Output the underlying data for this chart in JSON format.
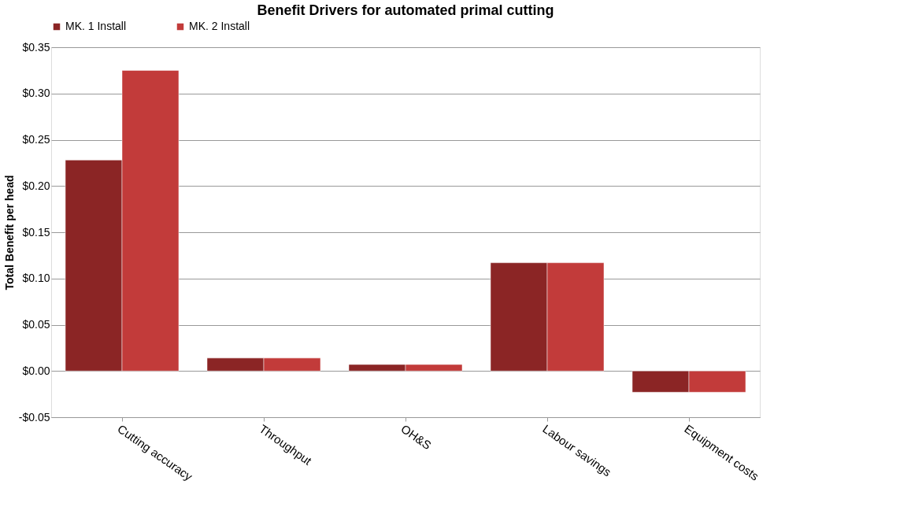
{
  "chart_data": {
    "type": "bar",
    "title": "Benefit Drivers for automated primal cutting",
    "ylabel": "Total Benefit per head",
    "categories": [
      "Cutting accuracy",
      "Throughput",
      "OH&S",
      "Labour savings",
      "Equipment costs"
    ],
    "series": [
      {
        "name": "MK. 1 Install",
        "color": "#8b2525",
        "values": [
          0.228,
          0.014,
          0.007,
          0.117,
          -0.023
        ]
      },
      {
        "name": "MK. 2 Install",
        "color": "#c23b3a",
        "values": [
          0.325,
          0.014,
          0.007,
          0.117,
          -0.023
        ]
      }
    ],
    "ylim": [
      -0.05,
      0.35
    ],
    "yticks": [
      {
        "value": -0.05,
        "label": "-$0.05"
      },
      {
        "value": 0.0,
        "label": "$0.00"
      },
      {
        "value": 0.05,
        "label": "$0.05"
      },
      {
        "value": 0.1,
        "label": "$0.10"
      },
      {
        "value": 0.15,
        "label": "$0.15"
      },
      {
        "value": 0.2,
        "label": "$0.20"
      },
      {
        "value": 0.25,
        "label": "$0.25"
      },
      {
        "value": 0.3,
        "label": "$0.30"
      },
      {
        "value": 0.35,
        "label": "$0.35"
      }
    ],
    "grid": "y",
    "legend": "top"
  }
}
